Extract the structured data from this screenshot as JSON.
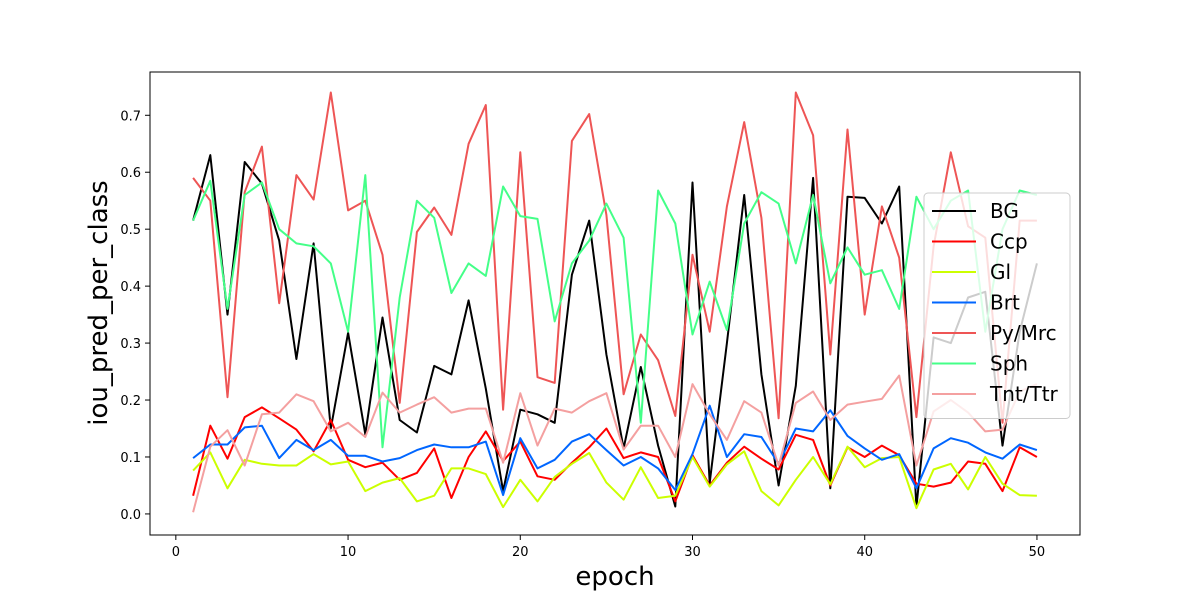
{
  "chart_data": {
    "type": "line",
    "title": "",
    "xlabel": "epoch",
    "ylabel": "iou_pred_per_class",
    "xlim": [
      -1.5,
      52.5
    ],
    "ylim": [
      -0.037,
      0.776
    ],
    "xticks": [
      0,
      10,
      20,
      30,
      40,
      50
    ],
    "yticks": [
      0.0,
      0.1,
      0.2,
      0.3,
      0.4,
      0.5,
      0.6,
      0.7
    ],
    "ytick_labels": [
      "0.0",
      "0.1",
      "0.2",
      "0.3",
      "0.4",
      "0.5",
      "0.6",
      "0.7"
    ],
    "xtick_labels": [
      "0",
      "10",
      "20",
      "30",
      "40",
      "50"
    ],
    "grid": false,
    "legend_position": "center-right",
    "x": [
      1,
      2,
      3,
      4,
      5,
      6,
      7,
      8,
      9,
      10,
      11,
      12,
      13,
      14,
      15,
      16,
      17,
      18,
      19,
      20,
      21,
      22,
      23,
      24,
      25,
      26,
      27,
      28,
      29,
      30,
      31,
      32,
      33,
      34,
      35,
      36,
      37,
      38,
      39,
      40,
      41,
      42,
      43,
      44,
      45,
      46,
      47,
      48,
      49,
      50
    ],
    "series": [
      {
        "name": "BG",
        "color": "#000000",
        "values": [
          0.515,
          0.63,
          0.35,
          0.618,
          0.58,
          0.48,
          0.272,
          0.475,
          0.15,
          0.318,
          0.14,
          0.345,
          0.165,
          0.143,
          0.26,
          0.245,
          0.375,
          0.22,
          0.04,
          0.183,
          0.175,
          0.16,
          0.42,
          0.515,
          0.28,
          0.115,
          0.258,
          0.12,
          0.013,
          0.582,
          0.055,
          0.3,
          0.56,
          0.245,
          0.05,
          0.225,
          0.59,
          0.045,
          0.557,
          0.555,
          0.51,
          0.575,
          0.012,
          0.31,
          0.3,
          0.38,
          0.39,
          0.12,
          0.32,
          0.44
        ]
      },
      {
        "name": "Ccp",
        "color": "#ff0000",
        "values": [
          0.032,
          0.155,
          0.097,
          0.17,
          0.187,
          0.168,
          0.148,
          0.11,
          0.165,
          0.095,
          0.082,
          0.09,
          0.06,
          0.072,
          0.115,
          0.028,
          0.1,
          0.145,
          0.093,
          0.127,
          0.066,
          0.06,
          0.09,
          0.117,
          0.15,
          0.098,
          0.108,
          0.1,
          0.022,
          0.103,
          0.05,
          0.09,
          0.118,
          0.097,
          0.078,
          0.139,
          0.13,
          0.05,
          0.117,
          0.1,
          0.12,
          0.103,
          0.053,
          0.048,
          0.055,
          0.092,
          0.088,
          0.04,
          0.117,
          0.1
        ]
      },
      {
        "name": "Gl",
        "color": "#ccff00",
        "values": [
          0.076,
          0.108,
          0.045,
          0.095,
          0.088,
          0.085,
          0.085,
          0.105,
          0.087,
          0.092,
          0.04,
          0.055,
          0.063,
          0.022,
          0.032,
          0.08,
          0.08,
          0.07,
          0.012,
          0.06,
          0.022,
          0.065,
          0.088,
          0.107,
          0.055,
          0.025,
          0.082,
          0.028,
          0.032,
          0.1,
          0.048,
          0.087,
          0.11,
          0.04,
          0.015,
          0.06,
          0.1,
          0.052,
          0.118,
          0.082,
          0.098,
          0.1,
          0.01,
          0.078,
          0.088,
          0.043,
          0.1,
          0.053,
          0.033,
          0.032
        ]
      },
      {
        "name": "Brt",
        "color": "#0066ff",
        "values": [
          0.098,
          0.122,
          0.122,
          0.152,
          0.155,
          0.098,
          0.13,
          0.112,
          0.13,
          0.102,
          0.102,
          0.092,
          0.098,
          0.112,
          0.122,
          0.117,
          0.117,
          0.127,
          0.033,
          0.133,
          0.08,
          0.095,
          0.127,
          0.14,
          0.112,
          0.085,
          0.1,
          0.08,
          0.042,
          0.105,
          0.19,
          0.1,
          0.14,
          0.135,
          0.088,
          0.15,
          0.145,
          0.182,
          0.137,
          0.115,
          0.095,
          0.105,
          0.045,
          0.115,
          0.133,
          0.125,
          0.108,
          0.097,
          0.122,
          0.112
        ]
      },
      {
        "name": "Py/Mrc",
        "color": "#ee5555",
        "values": [
          0.59,
          0.55,
          0.205,
          0.565,
          0.645,
          0.37,
          0.595,
          0.552,
          0.74,
          0.533,
          0.55,
          0.455,
          0.195,
          0.495,
          0.538,
          0.49,
          0.65,
          0.718,
          0.183,
          0.635,
          0.24,
          0.23,
          0.655,
          0.702,
          0.525,
          0.21,
          0.315,
          0.27,
          0.172,
          0.455,
          0.32,
          0.54,
          0.688,
          0.52,
          0.168,
          0.74,
          0.665,
          0.28,
          0.675,
          0.35,
          0.54,
          0.45,
          0.17,
          0.47,
          0.635,
          0.505,
          0.485,
          0.16,
          0.515,
          0.515
        ]
      },
      {
        "name": "Sph",
        "color": "#44ff88",
        "values": [
          0.515,
          0.585,
          0.36,
          0.56,
          0.582,
          0.5,
          0.475,
          0.47,
          0.44,
          0.32,
          0.595,
          0.117,
          0.38,
          0.55,
          0.52,
          0.388,
          0.44,
          0.418,
          0.575,
          0.523,
          0.518,
          0.338,
          0.44,
          0.48,
          0.545,
          0.485,
          0.16,
          0.568,
          0.51,
          0.315,
          0.408,
          0.323,
          0.51,
          0.565,
          0.545,
          0.44,
          0.56,
          0.405,
          0.468,
          0.42,
          0.428,
          0.36,
          0.557,
          0.5,
          0.55,
          0.568,
          0.32,
          0.5,
          0.568,
          0.56
        ]
      },
      {
        "name": "Tnt/Ttr",
        "color": "#f4a0a0",
        "values": [
          0.003,
          0.118,
          0.147,
          0.085,
          0.175,
          0.178,
          0.21,
          0.198,
          0.145,
          0.16,
          0.135,
          0.213,
          0.178,
          0.192,
          0.205,
          0.178,
          0.185,
          0.185,
          0.09,
          0.212,
          0.12,
          0.185,
          0.178,
          0.198,
          0.212,
          0.113,
          0.155,
          0.155,
          0.1,
          0.228,
          0.175,
          0.13,
          0.198,
          0.178,
          0.085,
          0.195,
          0.215,
          0.165,
          0.192,
          0.197,
          0.202,
          0.243,
          0.085,
          0.18,
          0.2,
          0.178,
          0.145,
          0.148,
          0.215,
          0.228
        ]
      }
    ]
  }
}
